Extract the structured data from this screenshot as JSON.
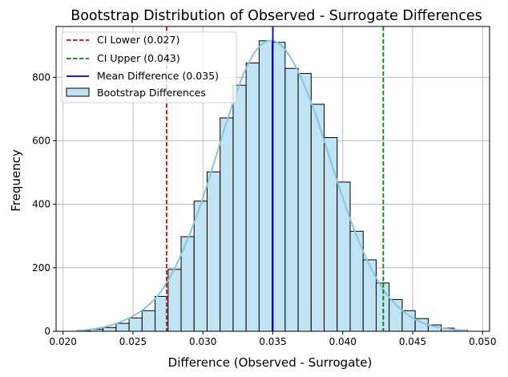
{
  "chart_data": {
    "type": "bar",
    "title": "Bootstrap Distribution of Observed - Surrogate Differences",
    "xlabel": "Difference (Observed - Surrogate)",
    "ylabel": "Frequency",
    "xlim": [
      0.0195,
      0.0505
    ],
    "ylim": [
      0,
      960
    ],
    "xticks": [
      0.02,
      0.025,
      0.03,
      0.035,
      0.04,
      0.045,
      0.05
    ],
    "xtick_labels": [
      "0.020",
      "0.025",
      "0.030",
      "0.035",
      "0.040",
      "0.045",
      "0.050"
    ],
    "yticks": [
      0,
      200,
      400,
      600,
      800
    ],
    "ytick_labels": [
      "0",
      "200",
      "400",
      "600",
      "800"
    ],
    "grid": true,
    "legend_position": "top-left",
    "bin_width": 0.00093,
    "bin_starts": [
      0.021,
      0.02193,
      0.02286,
      0.02379,
      0.02472,
      0.02565,
      0.02658,
      0.02751,
      0.02844,
      0.02937,
      0.0303,
      0.03123,
      0.03216,
      0.03309,
      0.03402,
      0.03495,
      0.03588,
      0.03681,
      0.03774,
      0.03867,
      0.0396,
      0.04053,
      0.04146,
      0.04239,
      0.04332,
      0.04425,
      0.04518,
      0.04611,
      0.04704,
      0.04797
    ],
    "counts": [
      2,
      6,
      12,
      25,
      42,
      65,
      110,
      195,
      298,
      410,
      502,
      672,
      775,
      845,
      915,
      910,
      828,
      812,
      715,
      610,
      470,
      315,
      225,
      152,
      100,
      65,
      40,
      20,
      10,
      4
    ],
    "kde": {
      "x": [
        0.021,
        0.022,
        0.023,
        0.024,
        0.025,
        0.026,
        0.027,
        0.028,
        0.029,
        0.03,
        0.031,
        0.032,
        0.033,
        0.034,
        0.035,
        0.036,
        0.037,
        0.038,
        0.039,
        0.04,
        0.041,
        0.042,
        0.043,
        0.044,
        0.045,
        0.046,
        0.047,
        0.048,
        0.0489
      ],
      "y": [
        2,
        6,
        14,
        28,
        48,
        78,
        125,
        200,
        300,
        420,
        560,
        700,
        820,
        895,
        915,
        880,
        800,
        690,
        555,
        420,
        300,
        200,
        125,
        75,
        42,
        22,
        11,
        5,
        2
      ]
    },
    "vlines": [
      {
        "name": "CI Lower (0.027)",
        "x": 0.0274,
        "color": "#e8000b",
        "style": "dashed"
      },
      {
        "name": "CI Upper (0.043)",
        "x": 0.0429,
        "color": "#008000",
        "style": "dashed"
      },
      {
        "name": "Mean Difference (0.035)",
        "x": 0.035,
        "color": "#0000cc",
        "style": "solid"
      }
    ],
    "hist_series_name": "Bootstrap Differences",
    "colors": {
      "bar_fill": "#c0e4f3",
      "bar_edge": "#000000",
      "kde_line": "#87c6df",
      "grid": "#b0b0b0"
    }
  }
}
